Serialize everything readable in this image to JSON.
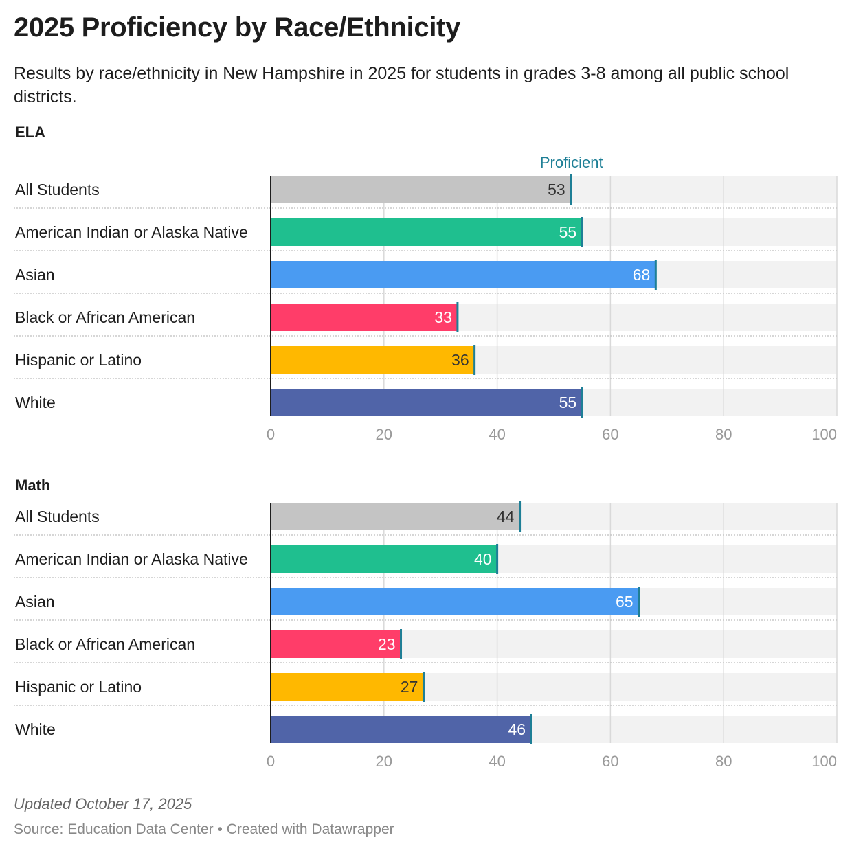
{
  "title": "2025 Proficiency by Race/Ethnicity",
  "subtitle": "Results by race/ethnicity in New Hampshire in 2025 for students in grades 3-8 among all public school districts.",
  "reference_label": "Proficient",
  "colors": {
    "reference": "#1e7f96",
    "track": "#f2f2f2",
    "grid": "#d9d9d9",
    "tick_text": "#999999"
  },
  "chart_data": [
    {
      "type": "bar",
      "title": "ELA",
      "categories": [
        "All Students",
        "American Indian or Alaska Native",
        "Asian",
        "Black or African American",
        "Hispanic or Latino",
        "White"
      ],
      "values": [
        53,
        55,
        68,
        33,
        36,
        55
      ],
      "bar_colors": [
        "#c4c4c4",
        "#1fbf8f",
        "#4a9bf2",
        "#ff3d69",
        "#ffb800",
        "#5064a8"
      ],
      "label_colors": [
        "#333333",
        "#ffffff",
        "#ffffff",
        "#ffffff",
        "#333333",
        "#ffffff"
      ],
      "xlim": [
        0,
        100
      ],
      "xticks": [
        0,
        20,
        40,
        60,
        80,
        100
      ]
    },
    {
      "type": "bar",
      "title": "Math",
      "categories": [
        "All Students",
        "American Indian or Alaska Native",
        "Asian",
        "Black or African American",
        "Hispanic or Latino",
        "White"
      ],
      "values": [
        44,
        40,
        65,
        23,
        27,
        46
      ],
      "bar_colors": [
        "#c4c4c4",
        "#1fbf8f",
        "#4a9bf2",
        "#ff3d69",
        "#ffb800",
        "#5064a8"
      ],
      "label_colors": [
        "#333333",
        "#ffffff",
        "#ffffff",
        "#ffffff",
        "#333333",
        "#ffffff"
      ],
      "xlim": [
        0,
        100
      ],
      "xticks": [
        0,
        20,
        40,
        60,
        80,
        100
      ]
    }
  ],
  "footer": {
    "updated": "Updated October 17, 2025",
    "source": "Source: Education Data Center • Created with Datawrapper"
  }
}
